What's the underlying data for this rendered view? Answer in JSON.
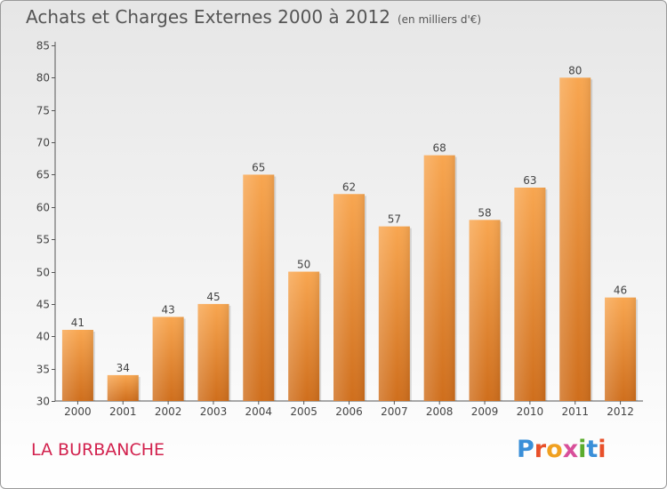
{
  "title": "Achats et Charges Externes 2000 à 2012",
  "subtitle": "(en milliers d'€)",
  "location": "LA BURBANCHE",
  "brand": {
    "letters": [
      "P",
      "r",
      "o",
      "x",
      "i",
      "t",
      "i"
    ],
    "colors": [
      "#3a8fd8",
      "#e8502a",
      "#f0a020",
      "#d84f9a",
      "#5aac2c",
      "#3a8fd8",
      "#e8502a"
    ]
  },
  "colors": {
    "bar_top": "#f8a650",
    "bar_bottom": "#cf6e1c",
    "title": "#555555",
    "location": "#d2224e"
  },
  "chart_data": {
    "type": "bar",
    "title": "Achats et Charges Externes 2000 à 2012",
    "subtitle": "(en milliers d'€)",
    "categories": [
      "2000",
      "2001",
      "2002",
      "2003",
      "2004",
      "2005",
      "2006",
      "2007",
      "2008",
      "2009",
      "2010",
      "2011",
      "2012"
    ],
    "values": [
      41,
      34,
      43,
      45,
      65,
      50,
      62,
      57,
      68,
      58,
      63,
      80,
      46
    ],
    "ylim": [
      30,
      85
    ],
    "yticks": [
      30,
      35,
      40,
      45,
      50,
      55,
      60,
      65,
      70,
      75,
      80,
      85
    ],
    "grid": false
  }
}
